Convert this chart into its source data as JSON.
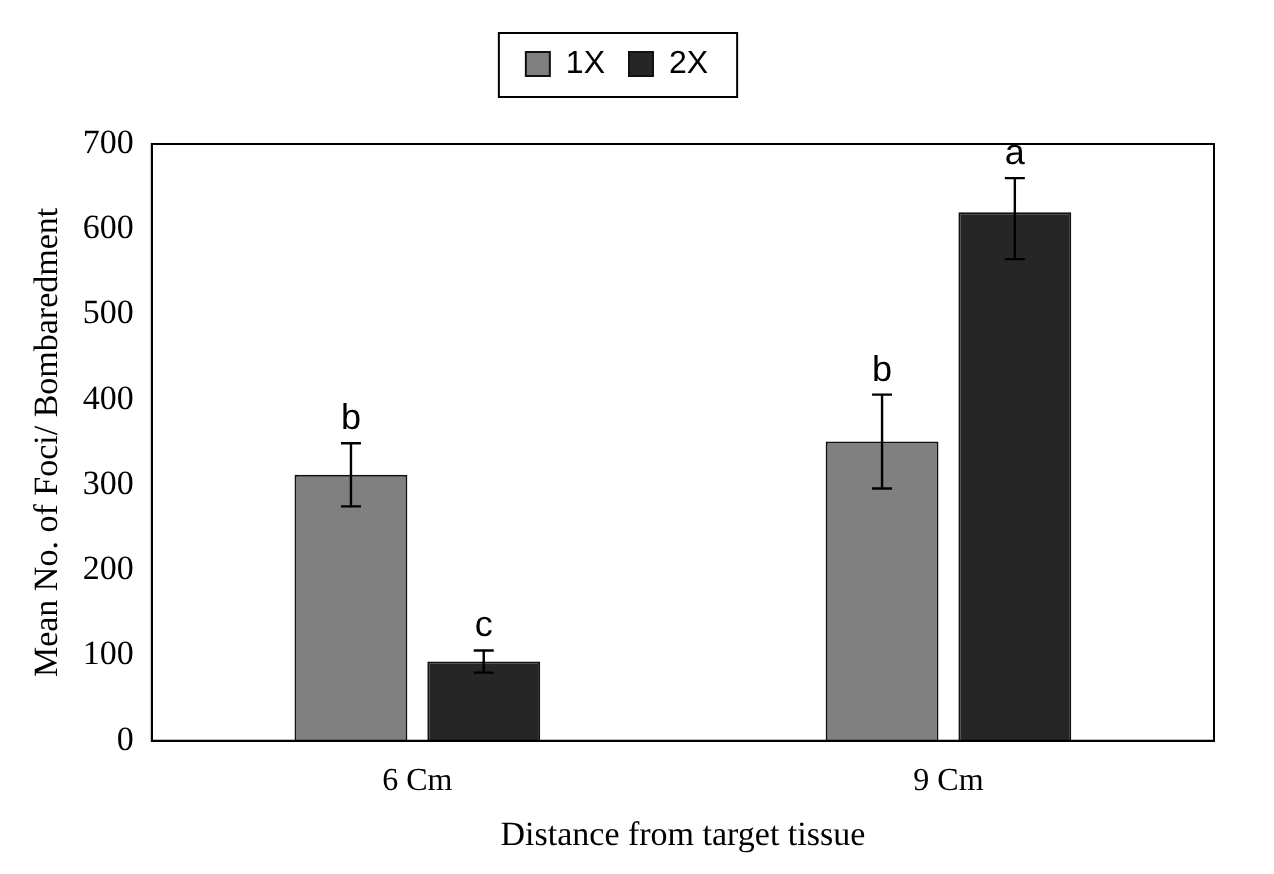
{
  "chart_data": {
    "type": "bar",
    "xlabel": "Distance from target tissue",
    "ylabel": "Mean No. of Foci/ Bombaredment",
    "categories": [
      "6 Cm",
      "9 Cm"
    ],
    "series": [
      {
        "name": "1X",
        "color": "#808080",
        "values": [
          312,
          351
        ],
        "errors": [
          37,
          55
        ]
      },
      {
        "name": "2X",
        "color": "#262626",
        "values": [
          93,
          620
        ],
        "errors": [
          13,
          [
            565,
            660
          ]
        ]
      }
    ],
    "ylim": [
      0,
      700
    ],
    "yticks": [
      0,
      100,
      200,
      300,
      400,
      500,
      600,
      700
    ],
    "grid": false,
    "legend": "top",
    "annotations": [
      "b",
      "c",
      "b",
      "a"
    ]
  }
}
